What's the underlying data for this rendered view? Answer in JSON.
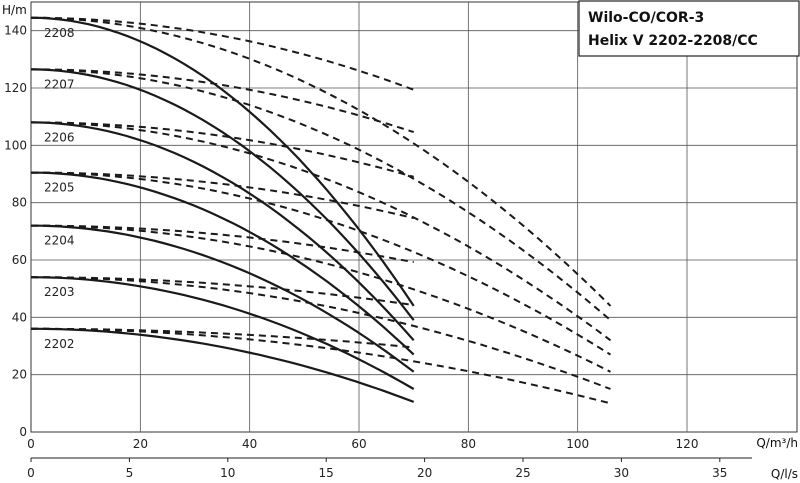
{
  "chart_data": {
    "type": "line",
    "title_lines": [
      "Wilo-CO/COR-3",
      "Helix V 2202-2208/CC"
    ],
    "ylabel": "H/m",
    "xlabel": "Q/m³/h",
    "x2label": "Q/l/s",
    "xlim": [
      0,
      140
    ],
    "ylim": [
      0,
      150
    ],
    "x_ticks": [
      0,
      20,
      40,
      60,
      80,
      100,
      120
    ],
    "y_ticks": [
      0,
      20,
      40,
      60,
      80,
      100,
      120,
      140
    ],
    "x2_ticks": [
      0,
      5,
      10,
      15,
      20,
      25,
      30,
      35
    ],
    "grid": true,
    "series": [
      {
        "name": "2202",
        "shutoff": 36,
        "q_max_single": 70,
        "h_end_single": 10.5,
        "h_end_double": 10
      },
      {
        "name": "2203",
        "shutoff": 54,
        "q_max_single": 70,
        "h_end_single": 15,
        "h_end_double": 15
      },
      {
        "name": "2204",
        "shutoff": 72,
        "q_max_single": 70,
        "h_end_single": 21,
        "h_end_double": 21
      },
      {
        "name": "2205",
        "shutoff": 90.5,
        "q_max_single": 70,
        "h_end_single": 27,
        "h_end_double": 27
      },
      {
        "name": "2206",
        "shutoff": 108,
        "q_max_single": 70,
        "h_end_single": 32,
        "h_end_double": 32
      },
      {
        "name": "2207",
        "shutoff": 126.5,
        "q_max_single": 70,
        "h_end_single": 39,
        "h_end_double": 39
      },
      {
        "name": "2208",
        "shutoff": 144.5,
        "q_max_single": 70,
        "h_end_single": 44,
        "h_end_double": 44
      }
    ],
    "q_max_double": 106,
    "q_max_triple": 106
  }
}
